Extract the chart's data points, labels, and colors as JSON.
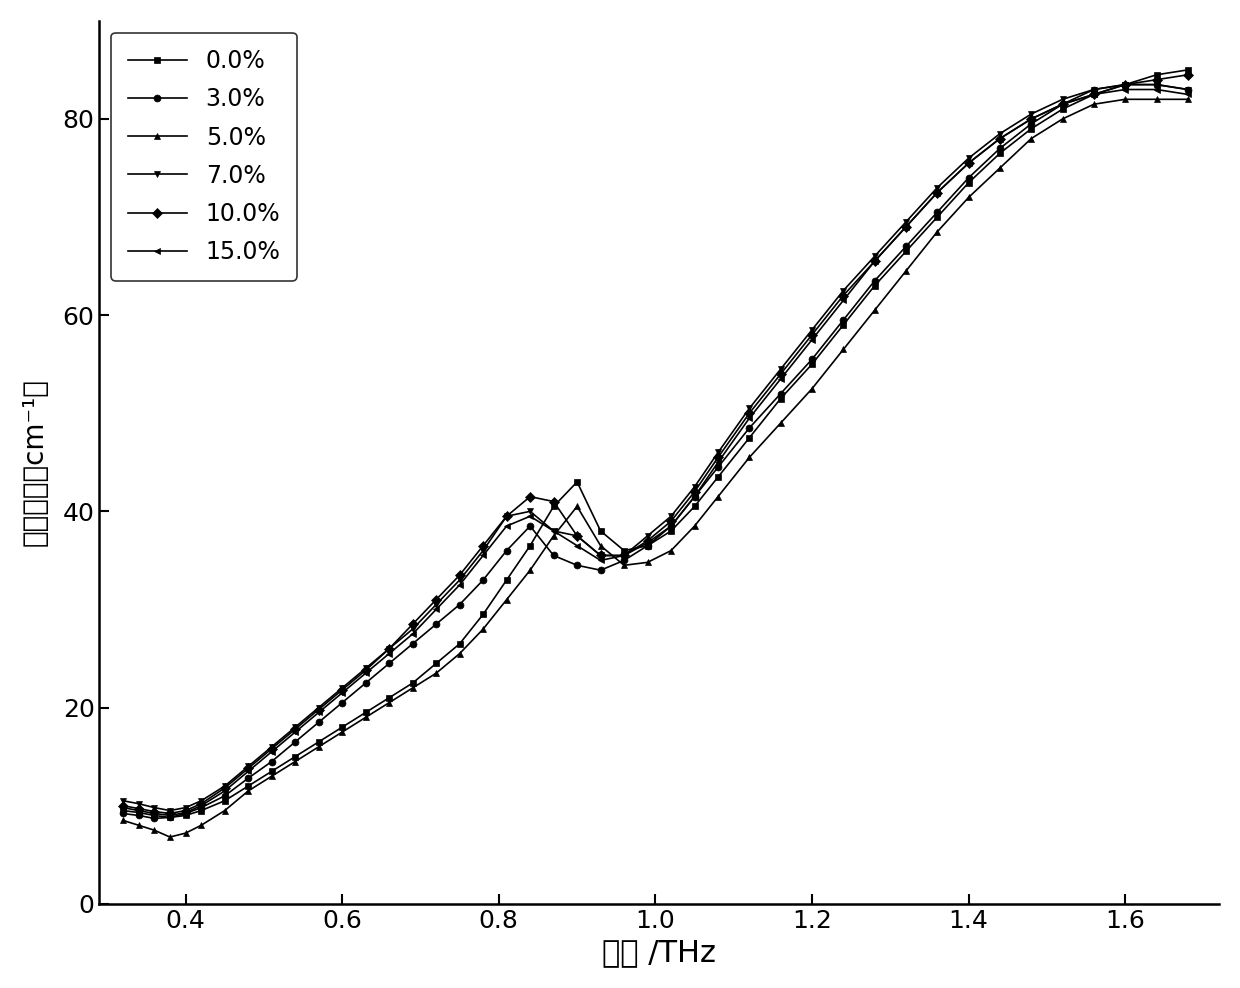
{
  "xlabel": "频率 /THz",
  "ylabel": "吸收系数（cm⁻¹）",
  "xlim": [
    0.29,
    1.72
  ],
  "ylim": [
    0,
    90
  ],
  "xticks": [
    0.4,
    0.6,
    0.8,
    1.0,
    1.2,
    1.4,
    1.6
  ],
  "yticks": [
    0,
    20,
    40,
    60,
    80
  ],
  "series": [
    {
      "label": "0.0%",
      "marker": "s",
      "x": [
        0.32,
        0.34,
        0.36,
        0.38,
        0.4,
        0.42,
        0.45,
        0.48,
        0.51,
        0.54,
        0.57,
        0.6,
        0.63,
        0.66,
        0.69,
        0.72,
        0.75,
        0.78,
        0.81,
        0.84,
        0.87,
        0.9,
        0.93,
        0.96,
        0.99,
        1.02,
        1.05,
        1.08,
        1.12,
        1.16,
        1.2,
        1.24,
        1.28,
        1.32,
        1.36,
        1.4,
        1.44,
        1.48,
        1.52,
        1.56,
        1.6,
        1.64,
        1.68
      ],
      "y": [
        9.5,
        9.3,
        9.0,
        8.8,
        9.0,
        9.5,
        10.5,
        12.0,
        13.5,
        15.0,
        16.5,
        18.0,
        19.5,
        21.0,
        22.5,
        24.5,
        26.5,
        29.5,
        33.0,
        36.5,
        40.5,
        43.0,
        38.0,
        36.0,
        36.5,
        38.0,
        40.5,
        43.5,
        47.5,
        51.5,
        55.0,
        59.0,
        63.0,
        66.5,
        70.0,
        73.5,
        76.5,
        79.0,
        81.0,
        82.5,
        83.5,
        84.5,
        85.0
      ]
    },
    {
      "label": "3.0%",
      "marker": "o",
      "x": [
        0.32,
        0.34,
        0.36,
        0.38,
        0.4,
        0.42,
        0.45,
        0.48,
        0.51,
        0.54,
        0.57,
        0.6,
        0.63,
        0.66,
        0.69,
        0.72,
        0.75,
        0.78,
        0.81,
        0.84,
        0.87,
        0.9,
        0.93,
        0.96,
        0.99,
        1.02,
        1.05,
        1.08,
        1.12,
        1.16,
        1.2,
        1.24,
        1.28,
        1.32,
        1.36,
        1.4,
        1.44,
        1.48,
        1.52,
        1.56,
        1.6,
        1.64,
        1.68
      ],
      "y": [
        9.2,
        9.0,
        8.7,
        8.8,
        9.2,
        9.8,
        11.0,
        12.8,
        14.5,
        16.5,
        18.5,
        20.5,
        22.5,
        24.5,
        26.5,
        28.5,
        30.5,
        33.0,
        36.0,
        38.5,
        35.5,
        34.5,
        34.0,
        35.0,
        36.5,
        38.5,
        41.5,
        44.5,
        48.5,
        52.0,
        55.5,
        59.5,
        63.5,
        67.0,
        70.5,
        74.0,
        77.0,
        79.5,
        81.5,
        83.0,
        83.5,
        83.5,
        83.0
      ]
    },
    {
      "label": "5.0%",
      "marker": "^",
      "x": [
        0.32,
        0.34,
        0.36,
        0.38,
        0.4,
        0.42,
        0.45,
        0.48,
        0.51,
        0.54,
        0.57,
        0.6,
        0.63,
        0.66,
        0.69,
        0.72,
        0.75,
        0.78,
        0.81,
        0.84,
        0.87,
        0.9,
        0.93,
        0.96,
        0.99,
        1.02,
        1.05,
        1.08,
        1.12,
        1.16,
        1.2,
        1.24,
        1.28,
        1.32,
        1.36,
        1.4,
        1.44,
        1.48,
        1.52,
        1.56,
        1.6,
        1.64,
        1.68
      ],
      "y": [
        8.5,
        8.0,
        7.5,
        6.8,
        7.2,
        8.0,
        9.5,
        11.5,
        13.0,
        14.5,
        16.0,
        17.5,
        19.0,
        20.5,
        22.0,
        23.5,
        25.5,
        28.0,
        31.0,
        34.0,
        37.5,
        40.5,
        36.5,
        34.5,
        34.8,
        36.0,
        38.5,
        41.5,
        45.5,
        49.0,
        52.5,
        56.5,
        60.5,
        64.5,
        68.5,
        72.0,
        75.0,
        78.0,
        80.0,
        81.5,
        82.0,
        82.0,
        82.0
      ]
    },
    {
      "label": "7.0%",
      "marker": "v",
      "x": [
        0.32,
        0.34,
        0.36,
        0.38,
        0.4,
        0.42,
        0.45,
        0.48,
        0.51,
        0.54,
        0.57,
        0.6,
        0.63,
        0.66,
        0.69,
        0.72,
        0.75,
        0.78,
        0.81,
        0.84,
        0.87,
        0.9,
        0.93,
        0.96,
        0.99,
        1.02,
        1.05,
        1.08,
        1.12,
        1.16,
        1.2,
        1.24,
        1.28,
        1.32,
        1.36,
        1.4,
        1.44,
        1.48,
        1.52,
        1.56,
        1.6,
        1.64,
        1.68
      ],
      "y": [
        10.5,
        10.2,
        9.8,
        9.5,
        9.8,
        10.5,
        12.0,
        14.0,
        16.0,
        18.0,
        20.0,
        22.0,
        24.0,
        26.0,
        28.0,
        30.5,
        33.0,
        36.0,
        39.5,
        40.0,
        38.0,
        37.5,
        35.5,
        35.5,
        37.5,
        39.5,
        42.5,
        46.0,
        50.5,
        54.5,
        58.5,
        62.5,
        66.0,
        69.5,
        73.0,
        76.0,
        78.5,
        80.5,
        82.0,
        83.0,
        83.5,
        83.5,
        83.0
      ]
    },
    {
      "label": "10.0%",
      "marker": "D",
      "x": [
        0.32,
        0.34,
        0.36,
        0.38,
        0.4,
        0.42,
        0.45,
        0.48,
        0.51,
        0.54,
        0.57,
        0.6,
        0.63,
        0.66,
        0.69,
        0.72,
        0.75,
        0.78,
        0.81,
        0.84,
        0.87,
        0.9,
        0.93,
        0.96,
        0.99,
        1.02,
        1.05,
        1.08,
        1.12,
        1.16,
        1.2,
        1.24,
        1.28,
        1.32,
        1.36,
        1.4,
        1.44,
        1.48,
        1.52,
        1.56,
        1.6,
        1.64,
        1.68
      ],
      "y": [
        10.0,
        9.7,
        9.4,
        9.2,
        9.5,
        10.2,
        11.8,
        13.8,
        15.8,
        17.8,
        19.8,
        21.8,
        23.8,
        26.0,
        28.5,
        31.0,
        33.5,
        36.5,
        39.5,
        41.5,
        41.0,
        37.5,
        35.5,
        35.5,
        37.0,
        39.0,
        42.0,
        45.5,
        50.0,
        54.0,
        58.0,
        62.0,
        65.5,
        69.0,
        72.5,
        75.5,
        78.0,
        80.0,
        81.5,
        82.5,
        83.5,
        84.0,
        84.5
      ]
    },
    {
      "label": "15.0%",
      "marker": "<",
      "x": [
        0.32,
        0.34,
        0.36,
        0.38,
        0.4,
        0.42,
        0.45,
        0.48,
        0.51,
        0.54,
        0.57,
        0.6,
        0.63,
        0.66,
        0.69,
        0.72,
        0.75,
        0.78,
        0.81,
        0.84,
        0.87,
        0.9,
        0.93,
        0.96,
        0.99,
        1.02,
        1.05,
        1.08,
        1.12,
        1.16,
        1.2,
        1.24,
        1.28,
        1.32,
        1.36,
        1.4,
        1.44,
        1.48,
        1.52,
        1.56,
        1.6,
        1.64,
        1.68
      ],
      "y": [
        9.8,
        9.5,
        9.2,
        9.0,
        9.3,
        10.0,
        11.5,
        13.5,
        15.5,
        17.5,
        19.5,
        21.5,
        23.5,
        25.5,
        27.5,
        30.0,
        32.5,
        35.5,
        38.5,
        39.5,
        38.0,
        36.5,
        35.0,
        35.5,
        36.8,
        38.5,
        41.5,
        45.0,
        49.5,
        53.5,
        57.5,
        61.5,
        65.5,
        69.0,
        72.5,
        75.5,
        78.0,
        80.0,
        81.5,
        82.5,
        83.0,
        83.0,
        82.5
      ]
    }
  ],
  "line_color": "black",
  "marker_size": 5,
  "line_width": 1.2,
  "background_color": "#ffffff",
  "legend_loc": "upper left",
  "xlabel_fontsize": 22,
  "ylabel_fontsize": 20,
  "tick_fontsize": 18,
  "legend_fontsize": 17
}
